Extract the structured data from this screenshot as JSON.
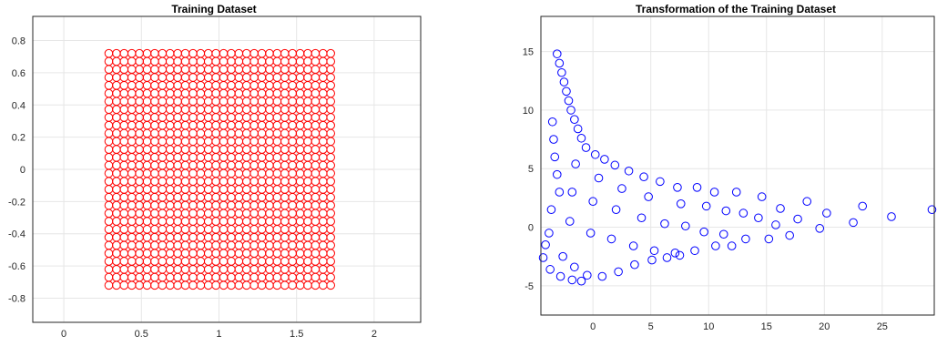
{
  "chart_data": [
    {
      "type": "scatter",
      "title": "Training Dataset",
      "xlabel": "",
      "ylabel": "",
      "xlim": [
        -0.2,
        2.3
      ],
      "ylim": [
        -0.95,
        0.95
      ],
      "xticks": [
        0,
        0.5,
        1,
        1.5,
        2
      ],
      "xtick_labels": [
        "0",
        "0.5",
        "1",
        "1.5",
        "2"
      ],
      "yticks": [
        -0.8,
        -0.6,
        -0.4,
        -0.2,
        0,
        0.2,
        0.4,
        0.6,
        0.8
      ],
      "ytick_labels": [
        "-0.8",
        "-0.6",
        "-0.4",
        "-0.2",
        "0",
        "0.2",
        "0.4",
        "0.6",
        "0.8"
      ],
      "grid": true,
      "marker": "circle",
      "color": "#ff0000",
      "series": [
        {
          "grid_points": {
            "x_start": 0.29,
            "x_end": 1.72,
            "x_count": 30,
            "y_start": -0.72,
            "y_end": 0.72,
            "y_count": 30
          }
        }
      ]
    },
    {
      "type": "scatter",
      "title": "Transformation of the Training Dataset",
      "xlabel": "",
      "ylabel": "",
      "xlim": [
        -4.5,
        29.5
      ],
      "ylim": [
        -7.5,
        18.0
      ],
      "xticks": [
        0,
        5,
        10,
        15,
        20,
        25
      ],
      "xtick_labels": [
        "0",
        "5",
        "10",
        "15",
        "20",
        "25"
      ],
      "yticks": [
        -5,
        0,
        5,
        10,
        15
      ],
      "ytick_labels": [
        "-5",
        "0",
        "5",
        "10",
        "15"
      ],
      "grid": true,
      "marker": "circle",
      "color": "#0000ff",
      "series": [
        {
          "points": [
            [
              -3.1,
              14.8
            ],
            [
              -2.9,
              14.0
            ],
            [
              -2.7,
              13.2
            ],
            [
              -2.5,
              12.4
            ],
            [
              -2.3,
              11.6
            ],
            [
              -2.1,
              10.8
            ],
            [
              -1.9,
              10.0
            ],
            [
              -1.6,
              9.2
            ],
            [
              -1.3,
              8.4
            ],
            [
              -1.0,
              7.6
            ],
            [
              -0.6,
              6.8
            ],
            [
              0.2,
              6.2
            ],
            [
              1.0,
              5.8
            ],
            [
              1.9,
              5.3
            ],
            [
              3.1,
              4.8
            ],
            [
              4.4,
              4.3
            ],
            [
              5.8,
              3.9
            ],
            [
              7.3,
              3.4
            ],
            [
              9.0,
              3.4
            ],
            [
              10.5,
              3.0
            ],
            [
              12.4,
              3.0
            ],
            [
              14.6,
              2.6
            ],
            [
              16.2,
              1.6
            ],
            [
              18.5,
              2.2
            ],
            [
              20.2,
              1.2
            ],
            [
              23.3,
              1.8
            ],
            [
              25.8,
              0.9
            ],
            [
              29.3,
              1.5
            ],
            [
              -3.5,
              9.0
            ],
            [
              -3.4,
              7.5
            ],
            [
              -3.3,
              6.0
            ],
            [
              -3.1,
              4.5
            ],
            [
              -2.9,
              3.0
            ],
            [
              -3.6,
              1.5
            ],
            [
              -3.8,
              -0.5
            ],
            [
              -4.1,
              -1.5
            ],
            [
              -4.3,
              -2.6
            ],
            [
              -1.5,
              5.4
            ],
            [
              0.5,
              4.2
            ],
            [
              2.5,
              3.3
            ],
            [
              4.8,
              2.6
            ],
            [
              7.6,
              2.0
            ],
            [
              9.8,
              1.8
            ],
            [
              11.5,
              1.4
            ],
            [
              13.0,
              1.2
            ],
            [
              14.3,
              0.8
            ],
            [
              15.8,
              0.2
            ],
            [
              17.7,
              0.7
            ],
            [
              19.6,
              -0.1
            ],
            [
              22.5,
              0.4
            ],
            [
              -1.8,
              3.0
            ],
            [
              0.0,
              2.2
            ],
            [
              2.0,
              1.5
            ],
            [
              4.2,
              0.8
            ],
            [
              6.2,
              0.3
            ],
            [
              8.0,
              0.1
            ],
            [
              9.6,
              -0.4
            ],
            [
              11.3,
              -0.6
            ],
            [
              13.2,
              -1.0
            ],
            [
              15.2,
              -1.0
            ],
            [
              17.0,
              -0.7
            ],
            [
              -2.0,
              0.5
            ],
            [
              -0.2,
              -0.5
            ],
            [
              1.6,
              -1.0
            ],
            [
              3.5,
              -1.6
            ],
            [
              5.3,
              -2.0
            ],
            [
              7.1,
              -2.2
            ],
            [
              8.8,
              -2.0
            ],
            [
              10.6,
              -1.6
            ],
            [
              12.0,
              -1.6
            ],
            [
              -2.6,
              -2.5
            ],
            [
              -1.6,
              -3.4
            ],
            [
              -0.5,
              -4.1
            ],
            [
              0.8,
              -4.2
            ],
            [
              2.2,
              -3.8
            ],
            [
              3.6,
              -3.2
            ],
            [
              5.1,
              -2.8
            ],
            [
              6.4,
              -2.6
            ],
            [
              7.5,
              -2.4
            ],
            [
              -3.7,
              -3.6
            ],
            [
              -2.8,
              -4.2
            ],
            [
              -1.8,
              -4.5
            ],
            [
              -1.0,
              -4.6
            ]
          ]
        }
      ]
    }
  ]
}
